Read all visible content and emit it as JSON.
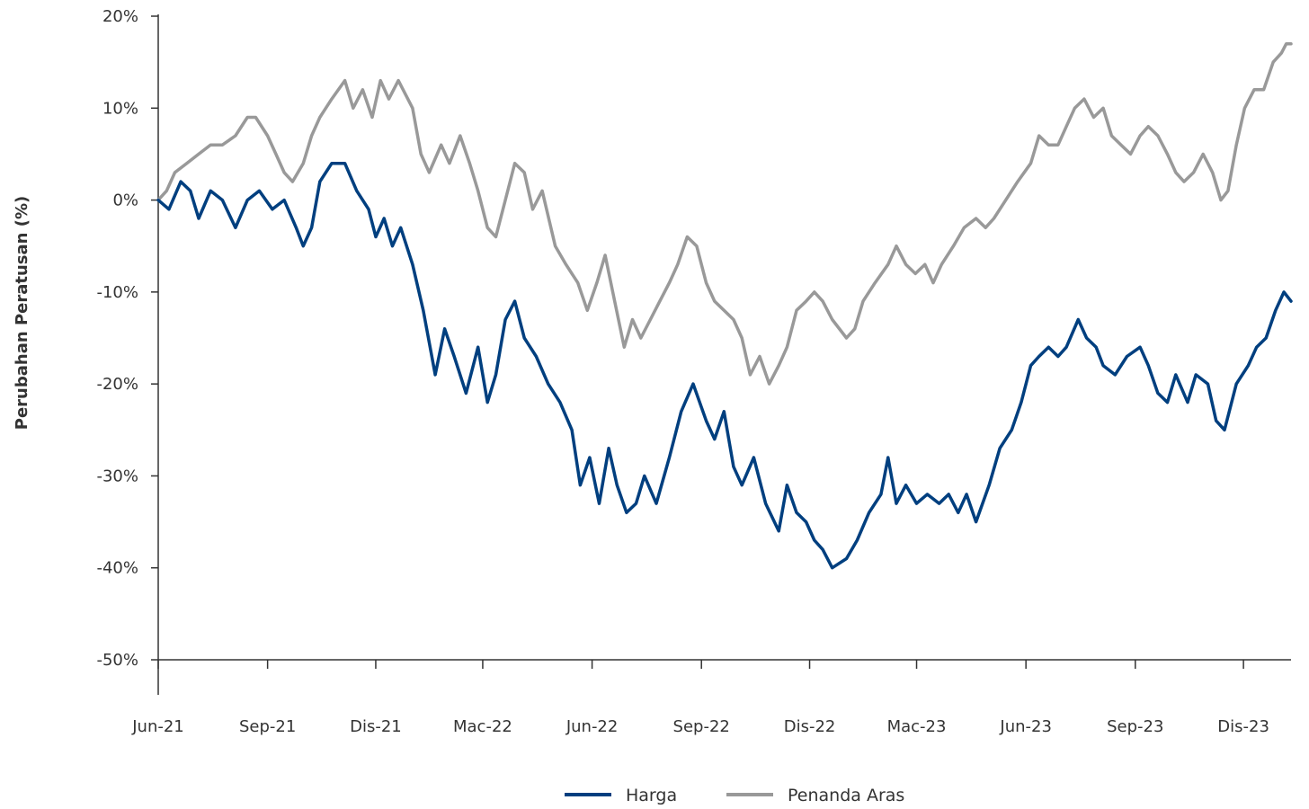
{
  "chart_data": {
    "type": "line",
    "ylabel": "Perubahan Peratusan (%)",
    "xlabel": "",
    "ylim": [
      -50,
      20
    ],
    "y_ticks": [
      20,
      10,
      0,
      -10,
      -20,
      -30,
      -40,
      -50
    ],
    "y_tick_labels": [
      "20%",
      "10%",
      "0%",
      "-10%",
      "-20%",
      "-30%",
      "-40%",
      "-50%"
    ],
    "x_range": [
      "2021-06-01",
      "2024-01-10"
    ],
    "x_ticks": [
      "2021-06-01",
      "2021-09-01",
      "2021-12-01",
      "2022-03-01",
      "2022-06-01",
      "2022-09-01",
      "2022-12-01",
      "2023-03-01",
      "2023-06-01",
      "2023-09-01",
      "2023-12-01"
    ],
    "x_tick_labels": [
      "Jun-21",
      "Sep-21",
      "Dis-21",
      "Mac-22",
      "Jun-22",
      "Sep-22",
      "Dis-22",
      "Mac-23",
      "Jun-23",
      "Sep-23",
      "Dis-23"
    ],
    "grid": false,
    "legend_position": "bottom-center",
    "series": [
      {
        "name": "Harga",
        "color": "#003f7f",
        "points": [
          [
            "2021-06-01",
            0
          ],
          [
            "2021-06-10",
            -1
          ],
          [
            "2021-06-20",
            2
          ],
          [
            "2021-06-28",
            1
          ],
          [
            "2021-07-05",
            -2
          ],
          [
            "2021-07-15",
            1
          ],
          [
            "2021-07-25",
            0
          ],
          [
            "2021-08-05",
            -3
          ],
          [
            "2021-08-15",
            0
          ],
          [
            "2021-08-25",
            1
          ],
          [
            "2021-09-05",
            -1
          ],
          [
            "2021-09-15",
            0
          ],
          [
            "2021-09-25",
            -3
          ],
          [
            "2021-10-01",
            -5
          ],
          [
            "2021-10-08",
            -3
          ],
          [
            "2021-10-15",
            2
          ],
          [
            "2021-10-25",
            4
          ],
          [
            "2021-11-05",
            4
          ],
          [
            "2021-11-15",
            1
          ],
          [
            "2021-11-25",
            -1
          ],
          [
            "2021-12-01",
            -4
          ],
          [
            "2021-12-08",
            -2
          ],
          [
            "2021-12-15",
            -5
          ],
          [
            "2021-12-22",
            -3
          ],
          [
            "2022-01-01",
            -7
          ],
          [
            "2022-01-10",
            -12
          ],
          [
            "2022-01-20",
            -19
          ],
          [
            "2022-01-28",
            -14
          ],
          [
            "2022-02-05",
            -17
          ],
          [
            "2022-02-15",
            -21
          ],
          [
            "2022-02-25",
            -16
          ],
          [
            "2022-03-05",
            -22
          ],
          [
            "2022-03-12",
            -19
          ],
          [
            "2022-03-20",
            -13
          ],
          [
            "2022-03-28",
            -11
          ],
          [
            "2022-04-05",
            -15
          ],
          [
            "2022-04-15",
            -17
          ],
          [
            "2022-04-25",
            -20
          ],
          [
            "2022-05-05",
            -22
          ],
          [
            "2022-05-15",
            -25
          ],
          [
            "2022-05-22",
            -31
          ],
          [
            "2022-05-30",
            -28
          ],
          [
            "2022-06-07",
            -33
          ],
          [
            "2022-06-15",
            -27
          ],
          [
            "2022-06-22",
            -31
          ],
          [
            "2022-06-30",
            -34
          ],
          [
            "2022-07-08",
            -33
          ],
          [
            "2022-07-15",
            -30
          ],
          [
            "2022-07-25",
            -33
          ],
          [
            "2022-08-05",
            -28
          ],
          [
            "2022-08-15",
            -23
          ],
          [
            "2022-08-25",
            -20
          ],
          [
            "2022-09-05",
            -24
          ],
          [
            "2022-09-12",
            -26
          ],
          [
            "2022-09-20",
            -23
          ],
          [
            "2022-09-28",
            -29
          ],
          [
            "2022-10-05",
            -31
          ],
          [
            "2022-10-15",
            -28
          ],
          [
            "2022-10-25",
            -33
          ],
          [
            "2022-11-05",
            -36
          ],
          [
            "2022-11-12",
            -31
          ],
          [
            "2022-11-20",
            -34
          ],
          [
            "2022-11-28",
            -35
          ],
          [
            "2022-12-05",
            -37
          ],
          [
            "2022-12-12",
            -38
          ],
          [
            "2022-12-20",
            -40
          ],
          [
            "2023-01-01",
            -39
          ],
          [
            "2023-01-10",
            -37
          ],
          [
            "2023-01-20",
            -34
          ],
          [
            "2023-01-30",
            -32
          ],
          [
            "2023-02-05",
            -28
          ],
          [
            "2023-02-12",
            -33
          ],
          [
            "2023-02-20",
            -31
          ],
          [
            "2023-03-01",
            -33
          ],
          [
            "2023-03-10",
            -32
          ],
          [
            "2023-03-20",
            -33
          ],
          [
            "2023-03-28",
            -32
          ],
          [
            "2023-04-05",
            -34
          ],
          [
            "2023-04-12",
            -32
          ],
          [
            "2023-04-20",
            -35
          ],
          [
            "2023-05-01",
            -31
          ],
          [
            "2023-05-10",
            -27
          ],
          [
            "2023-05-20",
            -25
          ],
          [
            "2023-05-28",
            -22
          ],
          [
            "2023-06-05",
            -18
          ],
          [
            "2023-06-12",
            -17
          ],
          [
            "2023-06-20",
            -16
          ],
          [
            "2023-06-28",
            -17
          ],
          [
            "2023-07-05",
            -16
          ],
          [
            "2023-07-15",
            -13
          ],
          [
            "2023-07-22",
            -15
          ],
          [
            "2023-07-30",
            -16
          ],
          [
            "2023-08-05",
            -18
          ],
          [
            "2023-08-15",
            -19
          ],
          [
            "2023-08-25",
            -17
          ],
          [
            "2023-09-05",
            -16
          ],
          [
            "2023-09-12",
            -18
          ],
          [
            "2023-09-20",
            -21
          ],
          [
            "2023-09-28",
            -22
          ],
          [
            "2023-10-05",
            -19
          ],
          [
            "2023-10-15",
            -22
          ],
          [
            "2023-10-22",
            -19
          ],
          [
            "2023-11-01",
            -20
          ],
          [
            "2023-11-08",
            -24
          ],
          [
            "2023-11-15",
            -25
          ],
          [
            "2023-11-25",
            -20
          ],
          [
            "2023-12-05",
            -18
          ],
          [
            "2023-12-12",
            -16
          ],
          [
            "2023-12-20",
            -15
          ],
          [
            "2023-12-28",
            -12
          ],
          [
            "2024-01-04",
            -10
          ],
          [
            "2024-01-10",
            -11
          ]
        ]
      },
      {
        "name": "Penanda Aras",
        "color": "#999999",
        "points": [
          [
            "2021-06-01",
            0
          ],
          [
            "2021-06-08",
            1
          ],
          [
            "2021-06-15",
            3
          ],
          [
            "2021-06-25",
            4
          ],
          [
            "2021-07-05",
            5
          ],
          [
            "2021-07-15",
            6
          ],
          [
            "2021-07-25",
            6
          ],
          [
            "2021-08-05",
            7
          ],
          [
            "2021-08-15",
            9
          ],
          [
            "2021-08-22",
            9
          ],
          [
            "2021-09-01",
            7
          ],
          [
            "2021-09-08",
            5
          ],
          [
            "2021-09-15",
            3
          ],
          [
            "2021-09-22",
            2
          ],
          [
            "2021-10-01",
            4
          ],
          [
            "2021-10-08",
            7
          ],
          [
            "2021-10-15",
            9
          ],
          [
            "2021-10-25",
            11
          ],
          [
            "2021-11-05",
            13
          ],
          [
            "2021-11-12",
            10
          ],
          [
            "2021-11-20",
            12
          ],
          [
            "2021-11-28",
            9
          ],
          [
            "2021-12-05",
            13
          ],
          [
            "2021-12-12",
            11
          ],
          [
            "2021-12-20",
            13
          ],
          [
            "2022-01-01",
            10
          ],
          [
            "2022-01-08",
            5
          ],
          [
            "2022-01-15",
            3
          ],
          [
            "2022-01-25",
            6
          ],
          [
            "2022-02-01",
            4
          ],
          [
            "2022-02-10",
            7
          ],
          [
            "2022-02-18",
            4
          ],
          [
            "2022-02-25",
            1
          ],
          [
            "2022-03-05",
            -3
          ],
          [
            "2022-03-12",
            -4
          ],
          [
            "2022-03-20",
            0
          ],
          [
            "2022-03-28",
            4
          ],
          [
            "2022-04-05",
            3
          ],
          [
            "2022-04-12",
            -1
          ],
          [
            "2022-04-20",
            1
          ],
          [
            "2022-05-01",
            -5
          ],
          [
            "2022-05-10",
            -7
          ],
          [
            "2022-05-20",
            -9
          ],
          [
            "2022-05-28",
            -12
          ],
          [
            "2022-06-05",
            -9
          ],
          [
            "2022-06-12",
            -6
          ],
          [
            "2022-06-20",
            -11
          ],
          [
            "2022-06-28",
            -16
          ],
          [
            "2022-07-05",
            -13
          ],
          [
            "2022-07-12",
            -15
          ],
          [
            "2022-07-20",
            -13
          ],
          [
            "2022-07-28",
            -11
          ],
          [
            "2022-08-05",
            -9
          ],
          [
            "2022-08-12",
            -7
          ],
          [
            "2022-08-20",
            -4
          ],
          [
            "2022-08-28",
            -5
          ],
          [
            "2022-09-05",
            -9
          ],
          [
            "2022-09-12",
            -11
          ],
          [
            "2022-09-20",
            -12
          ],
          [
            "2022-09-28",
            -13
          ],
          [
            "2022-10-05",
            -15
          ],
          [
            "2022-10-12",
            -19
          ],
          [
            "2022-10-20",
            -17
          ],
          [
            "2022-10-28",
            -20
          ],
          [
            "2022-11-05",
            -18
          ],
          [
            "2022-11-12",
            -16
          ],
          [
            "2022-11-20",
            -12
          ],
          [
            "2022-11-28",
            -11
          ],
          [
            "2022-12-05",
            -10
          ],
          [
            "2022-12-12",
            -11
          ],
          [
            "2022-12-20",
            -13
          ],
          [
            "2023-01-01",
            -15
          ],
          [
            "2023-01-08",
            -14
          ],
          [
            "2023-01-15",
            -11
          ],
          [
            "2023-01-25",
            -9
          ],
          [
            "2023-02-05",
            -7
          ],
          [
            "2023-02-12",
            -5
          ],
          [
            "2023-02-20",
            -7
          ],
          [
            "2023-02-28",
            -8
          ],
          [
            "2023-03-08",
            -7
          ],
          [
            "2023-03-15",
            -9
          ],
          [
            "2023-03-22",
            -7
          ],
          [
            "2023-04-01",
            -5
          ],
          [
            "2023-04-10",
            -3
          ],
          [
            "2023-04-20",
            -2
          ],
          [
            "2023-04-28",
            -3
          ],
          [
            "2023-05-05",
            -2
          ],
          [
            "2023-05-15",
            0
          ],
          [
            "2023-05-25",
            2
          ],
          [
            "2023-06-05",
            4
          ],
          [
            "2023-06-12",
            7
          ],
          [
            "2023-06-20",
            6
          ],
          [
            "2023-06-28",
            6
          ],
          [
            "2023-07-05",
            8
          ],
          [
            "2023-07-12",
            10
          ],
          [
            "2023-07-20",
            11
          ],
          [
            "2023-07-28",
            9
          ],
          [
            "2023-08-05",
            10
          ],
          [
            "2023-08-12",
            7
          ],
          [
            "2023-08-20",
            6
          ],
          [
            "2023-08-28",
            5
          ],
          [
            "2023-09-05",
            7
          ],
          [
            "2023-09-12",
            8
          ],
          [
            "2023-09-20",
            7
          ],
          [
            "2023-09-28",
            5
          ],
          [
            "2023-10-05",
            3
          ],
          [
            "2023-10-12",
            2
          ],
          [
            "2023-10-20",
            3
          ],
          [
            "2023-10-28",
            5
          ],
          [
            "2023-11-05",
            3
          ],
          [
            "2023-11-12",
            0
          ],
          [
            "2023-11-18",
            1
          ],
          [
            "2023-11-25",
            6
          ],
          [
            "2023-12-02",
            10
          ],
          [
            "2023-12-10",
            12
          ],
          [
            "2023-12-18",
            12
          ],
          [
            "2023-12-26",
            15
          ],
          [
            "2024-01-02",
            16
          ],
          [
            "2024-01-06",
            17
          ],
          [
            "2024-01-10",
            17
          ]
        ]
      }
    ]
  }
}
